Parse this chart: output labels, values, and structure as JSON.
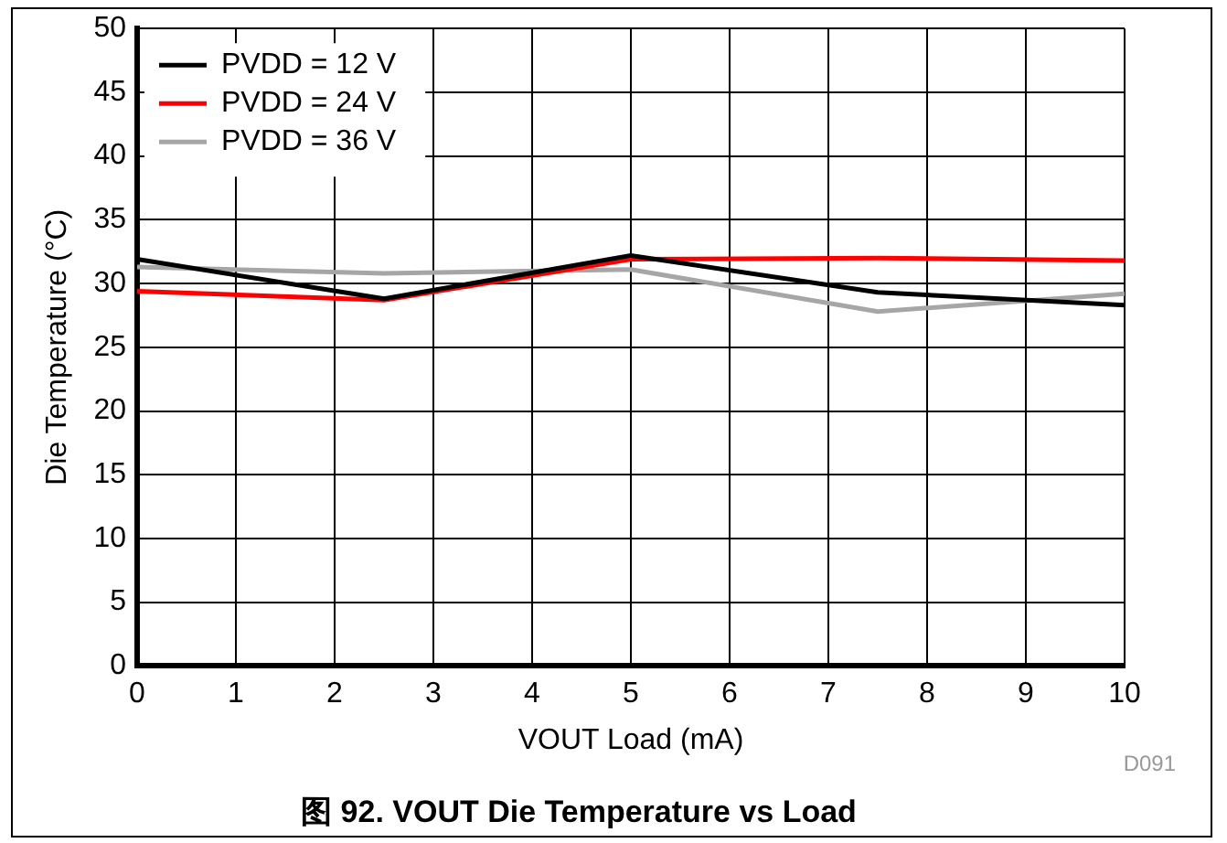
{
  "chart_data": {
    "type": "line",
    "title": "图 92. VOUT Die Temperature vs Load",
    "xlabel": "VOUT Load (mA)",
    "ylabel": "Die Temperature (°C)",
    "annotations": [
      "D091"
    ],
    "x": [
      0,
      2.5,
      5,
      7.5,
      10
    ],
    "series": [
      {
        "name": "PVDD = 12 V",
        "color": "#000000",
        "values": [
          31.9,
          28.8,
          32.2,
          29.3,
          28.3
        ]
      },
      {
        "name": "PVDD = 24 V",
        "color": "#ff0000",
        "values": [
          29.4,
          28.7,
          31.9,
          32.0,
          31.8
        ]
      },
      {
        "name": "PVDD = 36 V",
        "color": "#a6a6a6",
        "values": [
          31.3,
          30.8,
          31.1,
          27.8,
          29.2
        ]
      }
    ],
    "xlim": [
      0,
      10
    ],
    "xticks": [
      0,
      1,
      2,
      3,
      4,
      5,
      6,
      7,
      8,
      9,
      10
    ],
    "ylim": [
      0,
      50
    ],
    "yticks": [
      0,
      5,
      10,
      15,
      20,
      25,
      30,
      35,
      40,
      45,
      50
    ],
    "grid": true,
    "legend": "top left",
    "marker": "none",
    "line_style": "solid"
  }
}
